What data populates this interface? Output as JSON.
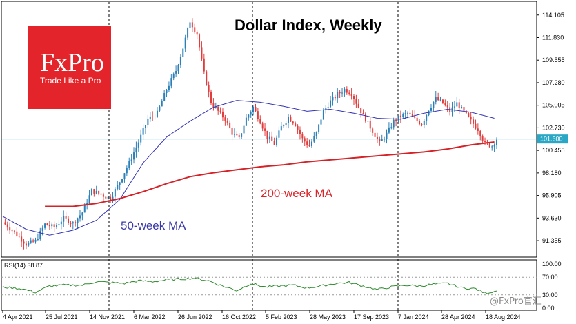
{
  "chart_data": {
    "type": "candlestick",
    "title": "Dollar Index, Weekly",
    "ylim": [
      89.9,
      115.2
    ],
    "y_ticks": [
      "114.105",
      "111.830",
      "109.555",
      "107.280",
      "105.005",
      "102.730",
      "100.455",
      "98.180",
      "95.905",
      "93.630",
      "91.355"
    ],
    "x_ticks": [
      "4 Apr 2021",
      "25 Jul 2021",
      "14 Nov 2021",
      "6 Mar 2022",
      "26 Jun 2022",
      "16 Oct 2022",
      "5 Feb 2023",
      "28 May 2023",
      "17 Sep 2023",
      "7 Jan 2024",
      "28 Apr 2024",
      "18 Aug 2024"
    ],
    "current_price": "101.600",
    "close_path": [
      [
        0,
        93.2
      ],
      [
        5,
        92.2
      ],
      [
        10,
        91.0
      ],
      [
        14,
        91.3
      ],
      [
        18,
        93.0
      ],
      [
        22,
        92.7
      ],
      [
        26,
        93.6
      ],
      [
        30,
        93.1
      ],
      [
        34,
        94.2
      ],
      [
        38,
        96.4
      ],
      [
        42,
        96.0
      ],
      [
        46,
        95.6
      ],
      [
        50,
        97.3
      ],
      [
        54,
        99.2
      ],
      [
        58,
        101.3
      ],
      [
        62,
        103.6
      ],
      [
        66,
        104.2
      ],
      [
        70,
        106.6
      ],
      [
        74,
        108.5
      ],
      [
        77,
        110.8
      ],
      [
        80,
        113.5
      ],
      [
        83,
        112.2
      ],
      [
        86,
        108.2
      ],
      [
        89,
        105.3
      ],
      [
        92,
        104.4
      ],
      [
        95,
        103.6
      ],
      [
        98,
        102.2
      ],
      [
        101,
        101.6
      ],
      [
        104,
        103.7
      ],
      [
        107,
        104.8
      ],
      [
        110,
        103.4
      ],
      [
        113,
        101.8
      ],
      [
        116,
        101.1
      ],
      [
        119,
        102.8
      ],
      [
        122,
        103.8
      ],
      [
        125,
        103.1
      ],
      [
        128,
        101.6
      ],
      [
        131,
        100.9
      ],
      [
        134,
        102.2
      ],
      [
        137,
        104.4
      ],
      [
        140,
        105.4
      ],
      [
        143,
        106.1
      ],
      [
        146,
        106.6
      ],
      [
        149,
        106.2
      ],
      [
        152,
        104.8
      ],
      [
        155,
        103.6
      ],
      [
        158,
        102.4
      ],
      [
        161,
        101.2
      ],
      [
        164,
        102.1
      ],
      [
        167,
        103.4
      ],
      [
        170,
        103.9
      ],
      [
        173,
        104.2
      ],
      [
        176,
        103.6
      ],
      [
        179,
        103.1
      ],
      [
        182,
        104.6
      ],
      [
        185,
        105.7
      ],
      [
        188,
        105.2
      ],
      [
        191,
        104.4
      ],
      [
        194,
        105.2
      ],
      [
        197,
        104.3
      ],
      [
        200,
        103.4
      ],
      [
        203,
        102.6
      ],
      [
        206,
        101.1
      ],
      [
        209,
        100.9
      ],
      [
        211,
        101.6
      ]
    ],
    "ma50_path": [
      [
        0,
        93.8
      ],
      [
        10,
        92.5
      ],
      [
        20,
        91.9
      ],
      [
        30,
        92.4
      ],
      [
        40,
        93.4
      ],
      [
        50,
        95.5
      ],
      [
        60,
        99.2
      ],
      [
        70,
        101.8
      ],
      [
        80,
        103.4
      ],
      [
        90,
        104.8
      ],
      [
        100,
        105.5
      ],
      [
        110,
        105.3
      ],
      [
        120,
        104.9
      ],
      [
        130,
        104.4
      ],
      [
        140,
        104.6
      ],
      [
        150,
        104.2
      ],
      [
        160,
        103.7
      ],
      [
        170,
        103.6
      ],
      [
        180,
        104.2
      ],
      [
        190,
        104.6
      ],
      [
        200,
        104.3
      ],
      [
        210,
        103.7
      ]
    ],
    "ma200_path": [
      [
        18,
        94.8
      ],
      [
        30,
        94.8
      ],
      [
        40,
        95.1
      ],
      [
        50,
        95.6
      ],
      [
        60,
        96.3
      ],
      [
        70,
        97.1
      ],
      [
        80,
        97.8
      ],
      [
        90,
        98.2
      ],
      [
        100,
        98.5
      ],
      [
        110,
        98.8
      ],
      [
        120,
        99.0
      ],
      [
        130,
        99.3
      ],
      [
        140,
        99.5
      ],
      [
        150,
        99.7
      ],
      [
        160,
        99.9
      ],
      [
        170,
        100.1
      ],
      [
        180,
        100.3
      ],
      [
        190,
        100.6
      ],
      [
        200,
        101.0
      ],
      [
        210,
        101.3
      ]
    ],
    "ma200_label": "200-week MA",
    "ma50_label": "50-week MA",
    "rsi": {
      "label": "RSI(14) 38.87",
      "ylim": [
        0,
        100
      ],
      "y_ticks": [
        "100.00",
        "70.00",
        "30.00",
        "0.00"
      ],
      "path": [
        [
          0,
          48
        ],
        [
          8,
          44
        ],
        [
          14,
          36
        ],
        [
          20,
          50
        ],
        [
          26,
          52
        ],
        [
          34,
          52
        ],
        [
          40,
          60
        ],
        [
          46,
          58
        ],
        [
          52,
          56
        ],
        [
          58,
          62
        ],
        [
          64,
          60
        ],
        [
          70,
          64
        ],
        [
          76,
          66
        ],
        [
          82,
          68
        ],
        [
          88,
          62
        ],
        [
          94,
          50
        ],
        [
          100,
          40
        ],
        [
          106,
          56
        ],
        [
          112,
          48
        ],
        [
          118,
          50
        ],
        [
          124,
          52
        ],
        [
          130,
          46
        ],
        [
          136,
          50
        ],
        [
          142,
          56
        ],
        [
          148,
          58
        ],
        [
          154,
          50
        ],
        [
          160,
          42
        ],
        [
          166,
          48
        ],
        [
          172,
          52
        ],
        [
          178,
          50
        ],
        [
          184,
          54
        ],
        [
          190,
          56
        ],
        [
          196,
          46
        ],
        [
          202,
          44
        ],
        [
          206,
          34
        ],
        [
          211,
          38.87
        ]
      ]
    }
  },
  "logo": {
    "name": "FxPro",
    "tagline": "Trade Like a Pro",
    "color": "#e3252b"
  },
  "watermark": "@FxPro官汇"
}
